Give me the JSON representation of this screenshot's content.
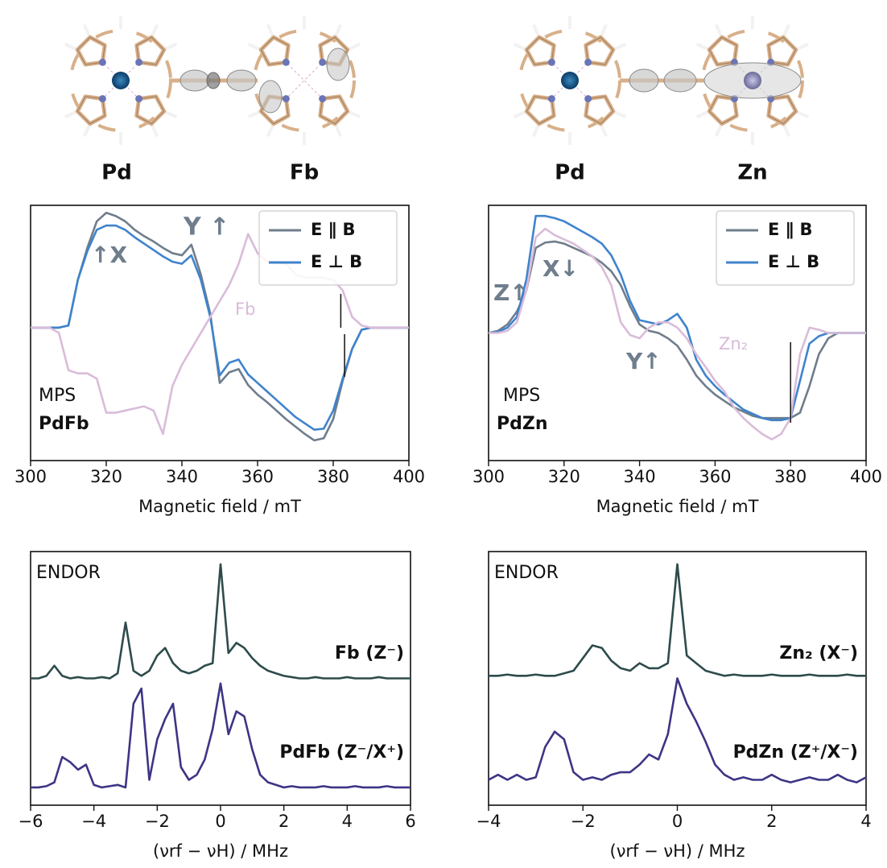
{
  "molecules": [
    {
      "labels": [
        "Pd",
        "Fb"
      ]
    },
    {
      "labels": [
        "Pd",
        "Zn"
      ]
    }
  ],
  "chart_data": [
    {
      "type": "line",
      "xlabel": "Magnetic field / mT",
      "xlim": [
        300,
        400
      ],
      "xticks": [
        300,
        320,
        340,
        360,
        380,
        400
      ],
      "ylim": [
        -1.25,
        1.15
      ],
      "legend": "upper right",
      "x": [
        300,
        302.5,
        305,
        307.5,
        310,
        312.5,
        315,
        317.5,
        320,
        322.5,
        325,
        327.5,
        330,
        332.5,
        335,
        337.5,
        340,
        342.5,
        345,
        347.5,
        350,
        352.5,
        355,
        357.5,
        360,
        362.5,
        365,
        367.5,
        370,
        372.5,
        375,
        377.5,
        380,
        382.5,
        385,
        387.5,
        390,
        392.5,
        395,
        397.5,
        400
      ],
      "series": [
        {
          "name": "E ∥ B",
          "color": "#6f7d8c",
          "values": [
            0,
            0,
            0,
            0,
            0.02,
            0.45,
            0.75,
            1.0,
            1.08,
            1.05,
            1.0,
            0.92,
            0.86,
            0.81,
            0.75,
            0.7,
            0.68,
            0.78,
            0.5,
            0.13,
            -0.52,
            -0.42,
            -0.39,
            -0.54,
            -0.63,
            -0.7,
            -0.78,
            -0.86,
            -0.93,
            -1.0,
            -1.06,
            -1.04,
            -0.86,
            -0.5,
            -0.2,
            -0.02,
            0,
            0,
            0,
            0,
            0
          ]
        },
        {
          "name": "E ⊥ B",
          "color": "#3f83cc",
          "values": [
            0,
            0,
            0,
            0,
            0.02,
            0.45,
            0.72,
            0.92,
            0.96,
            0.96,
            0.92,
            0.85,
            0.79,
            0.73,
            0.67,
            0.62,
            0.6,
            0.68,
            0.45,
            0.1,
            -0.45,
            -0.33,
            -0.3,
            -0.44,
            -0.52,
            -0.6,
            -0.68,
            -0.76,
            -0.84,
            -0.9,
            -0.96,
            -0.95,
            -0.78,
            -0.48,
            -0.2,
            -0.02,
            0,
            0,
            0,
            0,
            0
          ]
        },
        {
          "name": "Fb",
          "color": "#d9bcd9",
          "in_legend": false,
          "values": [
            0,
            0,
            0,
            -0.05,
            -0.4,
            -0.43,
            -0.43,
            -0.48,
            -0.8,
            -0.8,
            -0.78,
            -0.76,
            -0.74,
            -0.78,
            -1.0,
            -0.55,
            -0.35,
            -0.2,
            -0.05,
            0.1,
            0.25,
            0.4,
            0.6,
            0.88,
            0.7,
            0.62,
            0.62,
            0.6,
            0.5,
            0.47,
            0.47,
            0.47,
            0.45,
            0.35,
            0.1,
            0.02,
            0,
            0,
            0,
            0,
            0
          ]
        }
      ],
      "vlines": [
        382,
        383
      ],
      "annotations": [
        {
          "text": "Y ↑",
          "color": "#6f7d8c",
          "bold": true
        },
        {
          "text": "↑X",
          "color": "#6f7d8c",
          "bold": true
        },
        {
          "text": "MPS",
          "color": "#111111",
          "bold": false
        },
        {
          "text": "PdFb",
          "color": "#111111",
          "bold": true
        }
      ]
    },
    {
      "type": "line",
      "xlabel": "Magnetic field / mT",
      "xlim": [
        300,
        400
      ],
      "xticks": [
        300,
        320,
        340,
        360,
        380,
        400
      ],
      "ylim": [
        -1.2,
        1.2
      ],
      "legend": "upper right",
      "x": [
        300,
        302.5,
        305,
        307.5,
        310,
        312.5,
        315,
        317.5,
        320,
        322.5,
        325,
        327.5,
        330,
        332.5,
        335,
        337.5,
        340,
        342.5,
        345,
        347.5,
        350,
        352.5,
        355,
        357.5,
        360,
        362.5,
        365,
        367.5,
        370,
        372.5,
        375,
        377.5,
        380,
        382.5,
        385,
        387.5,
        390,
        392.5,
        395,
        397.5,
        400
      ],
      "series": [
        {
          "name": "E ∥ B",
          "color": "#6f7d8c",
          "values": [
            0,
            0.02,
            0.08,
            0.2,
            0.4,
            0.8,
            0.85,
            0.86,
            0.84,
            0.8,
            0.76,
            0.72,
            0.66,
            0.58,
            0.45,
            0.25,
            0.08,
            0.02,
            0,
            -0.05,
            -0.12,
            -0.25,
            -0.4,
            -0.5,
            -0.58,
            -0.64,
            -0.7,
            -0.74,
            -0.78,
            -0.8,
            -0.8,
            -0.8,
            -0.8,
            -0.75,
            -0.5,
            -0.2,
            -0.05,
            0,
            0,
            0,
            0
          ]
        },
        {
          "name": "E ⊥ B",
          "color": "#3f83cc",
          "values": [
            0,
            0.01,
            0.05,
            0.15,
            0.5,
            1.1,
            1.1,
            1.08,
            1.05,
            1.0,
            0.95,
            0.9,
            0.84,
            0.73,
            0.55,
            0.3,
            0.12,
            0.1,
            0.08,
            0.12,
            0.18,
            0.05,
            -0.25,
            -0.4,
            -0.5,
            -0.58,
            -0.65,
            -0.72,
            -0.76,
            -0.8,
            -0.82,
            -0.82,
            -0.8,
            -0.45,
            -0.1,
            -0.03,
            0,
            0,
            0,
            0,
            0
          ]
        },
        {
          "name": "Zn₂",
          "color": "#d9bcd9",
          "in_legend": false,
          "values": [
            0,
            0,
            0.02,
            0.1,
            0.4,
            0.9,
            0.98,
            0.92,
            0.88,
            0.84,
            0.78,
            0.72,
            0.62,
            0.45,
            0.1,
            -0.02,
            -0.05,
            0.05,
            0.1,
            0.1,
            0.05,
            -0.05,
            -0.2,
            -0.32,
            -0.45,
            -0.55,
            -0.7,
            -0.8,
            -0.88,
            -0.95,
            -1.0,
            -0.95,
            -0.8,
            -0.2,
            0.05,
            0.03,
            0,
            0,
            0,
            0,
            0
          ]
        }
      ],
      "vlines": [
        380
      ],
      "annotations": [
        {
          "text": "Z↑",
          "color": "#6f7d8c",
          "bold": true
        },
        {
          "text": "X↓",
          "color": "#6f7d8c",
          "bold": true
        },
        {
          "text": "Y↑",
          "color": "#6f7d8c",
          "bold": true
        },
        {
          "text": "MPS",
          "color": "#111111",
          "bold": false
        },
        {
          "text": "PdZn",
          "color": "#111111",
          "bold": true
        }
      ]
    },
    {
      "type": "line",
      "xlabel": "(νrf − νH) / MHz",
      "xlim": [
        -6,
        6
      ],
      "xticks": [
        {
          "value": -6,
          "label": "−6"
        },
        {
          "value": -4,
          "label": "−4"
        },
        {
          "value": -2,
          "label": "−2"
        },
        0,
        2,
        4,
        6
      ],
      "ylim": [
        0,
        10
      ],
      "x": [
        -6,
        -5.75,
        -5.5,
        -5.25,
        -5,
        -4.75,
        -4.5,
        -4.25,
        -4,
        -3.75,
        -3.5,
        -3.25,
        -3,
        -2.75,
        -2.5,
        -2.25,
        -2,
        -1.75,
        -1.5,
        -1.25,
        -1,
        -0.75,
        -0.5,
        -0.25,
        0,
        0.25,
        0.5,
        0.75,
        1,
        1.25,
        1.5,
        1.75,
        2,
        2.25,
        2.5,
        2.75,
        3,
        3.25,
        3.5,
        3.75,
        4,
        4.25,
        4.5,
        4.75,
        5,
        5.25,
        5.5,
        5.75,
        6
      ],
      "series": [
        {
          "name": "Fb (Z⁻)",
          "color": "#2e4b4b",
          "values": [
            5.0,
            5.0,
            5.1,
            5.5,
            5.1,
            5.0,
            5.05,
            5.0,
            5.0,
            5.05,
            5.0,
            5.2,
            7.2,
            5.3,
            5.1,
            5.3,
            5.9,
            6.2,
            5.6,
            5.3,
            5.2,
            5.3,
            5.5,
            5.6,
            9.5,
            6.0,
            6.4,
            6.2,
            5.8,
            5.5,
            5.3,
            5.2,
            5.1,
            5.05,
            5.0,
            5.0,
            5.05,
            5.0,
            5.0,
            5.0,
            5.05,
            5.0,
            5.0,
            5.0,
            5.05,
            5.0,
            5.0,
            5.0,
            5.0
          ]
        },
        {
          "name": "PdFb (Z⁻/X⁺)",
          "color": "#3d3585",
          "values": [
            0.7,
            0.7,
            0.75,
            0.9,
            1.9,
            1.7,
            1.4,
            1.6,
            0.8,
            0.7,
            0.75,
            0.8,
            0.7,
            4.0,
            4.6,
            1.0,
            2.6,
            3.4,
            4.0,
            1.5,
            1.0,
            1.2,
            1.8,
            3.0,
            4.8,
            2.8,
            3.7,
            3.5,
            2.2,
            1.2,
            0.9,
            0.8,
            0.7,
            0.75,
            0.7,
            0.7,
            0.7,
            0.75,
            0.7,
            0.7,
            0.7,
            0.75,
            0.7,
            0.7,
            0.7,
            0.75,
            0.7,
            0.7,
            0.7
          ]
        }
      ],
      "annotations": [
        {
          "text": "ENDOR",
          "color": "#111111",
          "bold": false
        }
      ]
    },
    {
      "type": "line",
      "xlabel": "(νrf − νH) / MHz",
      "xlim": [
        -4,
        4
      ],
      "xticks": [
        {
          "value": -4,
          "label": "−4"
        },
        {
          "value": -2,
          "label": "−2"
        },
        0,
        2,
        4
      ],
      "ylim": [
        0,
        10
      ],
      "x": [
        -4,
        -3.8,
        -3.6,
        -3.4,
        -3.2,
        -3,
        -2.8,
        -2.6,
        -2.4,
        -2.2,
        -2,
        -1.8,
        -1.6,
        -1.4,
        -1.2,
        -1,
        -0.8,
        -0.6,
        -0.4,
        -0.2,
        0,
        0.2,
        0.4,
        0.6,
        0.8,
        1,
        1.2,
        1.4,
        1.6,
        1.8,
        2,
        2.2,
        2.4,
        2.6,
        2.8,
        3,
        3.2,
        3.4,
        3.6,
        3.8,
        4
      ],
      "series": [
        {
          "name": "Zn₂ (X⁻)",
          "color": "#2e4b4b",
          "values": [
            5.1,
            5.1,
            5.15,
            5.1,
            5.1,
            5.15,
            5.1,
            5.1,
            5.2,
            5.3,
            5.8,
            6.3,
            6.2,
            5.7,
            5.4,
            5.3,
            5.6,
            5.4,
            5.4,
            5.6,
            9.5,
            5.9,
            5.6,
            5.3,
            5.2,
            5.1,
            5.15,
            5.1,
            5.1,
            5.1,
            5.15,
            5.1,
            5.1,
            5.1,
            5.15,
            5.1,
            5.1,
            5.1,
            5.15,
            5.1,
            5.1
          ]
        },
        {
          "name": "PdZn (Z⁺/X⁻)",
          "color": "#3d3585",
          "values": [
            1.0,
            1.2,
            1.0,
            1.2,
            1.0,
            1.1,
            2.3,
            2.9,
            2.6,
            1.3,
            1.0,
            1.1,
            1.0,
            1.2,
            1.3,
            1.3,
            1.6,
            2.0,
            1.8,
            2.8,
            5.0,
            4.0,
            3.3,
            2.5,
            1.6,
            1.2,
            1.0,
            1.1,
            1.0,
            1.0,
            1.2,
            1.0,
            0.9,
            1.0,
            1.1,
            1.0,
            1.0,
            1.2,
            1.0,
            0.9,
            1.1
          ]
        }
      ],
      "annotations": [
        {
          "text": "ENDOR",
          "color": "#111111",
          "bold": false
        }
      ]
    }
  ]
}
